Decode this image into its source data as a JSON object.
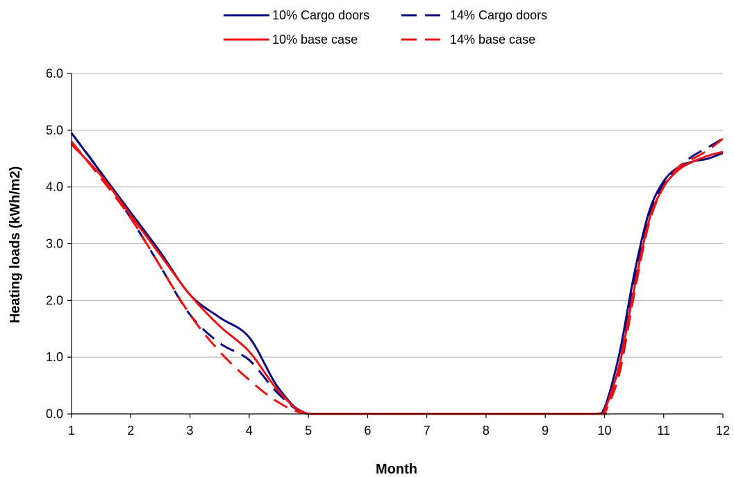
{
  "chart_data": {
    "type": "line",
    "title": "",
    "xlabel": "Month",
    "ylabel": "Heating loads (kWh/m2)",
    "xlim": [
      1,
      12
    ],
    "ylim": [
      0,
      6
    ],
    "x_ticks": [
      "1",
      "2",
      "3",
      "4",
      "5",
      "6",
      "7",
      "8",
      "9",
      "10",
      "11",
      "12"
    ],
    "y_ticks": [
      "0.0",
      "1.0",
      "2.0",
      "3.0",
      "4.0",
      "5.0",
      "6.0"
    ],
    "grid": "horizontal",
    "legend_position": "top",
    "series": [
      {
        "name": "10% Cargo doors",
        "color": "#0a0a80",
        "dash": "solid",
        "points": [
          [
            1,
            4.95
          ],
          [
            1.5,
            4.25
          ],
          [
            2,
            3.55
          ],
          [
            2.5,
            2.85
          ],
          [
            3,
            2.1
          ],
          [
            3.5,
            1.7
          ],
          [
            4,
            1.35
          ],
          [
            4.5,
            0.45
          ],
          [
            5,
            0.0
          ],
          [
            6,
            0.0
          ],
          [
            7,
            0.0
          ],
          [
            8,
            0.0
          ],
          [
            9,
            0.0
          ],
          [
            9.85,
            0.0
          ],
          [
            10,
            0.1
          ],
          [
            10.25,
            1.05
          ],
          [
            10.5,
            2.45
          ],
          [
            10.75,
            3.55
          ],
          [
            11,
            4.1
          ],
          [
            11.25,
            4.35
          ],
          [
            11.5,
            4.45
          ],
          [
            11.75,
            4.5
          ],
          [
            12,
            4.6
          ]
        ]
      },
      {
        "name": "14% Cargo doors",
        "color": "#0a0a80",
        "dash": "dashed",
        "points": [
          [
            1,
            4.95
          ],
          [
            1.5,
            4.25
          ],
          [
            2,
            3.45
          ],
          [
            2.5,
            2.6
          ],
          [
            3,
            1.75
          ],
          [
            3.5,
            1.25
          ],
          [
            4,
            0.95
          ],
          [
            4.5,
            0.35
          ],
          [
            5,
            0.0
          ],
          [
            6,
            0.0
          ],
          [
            7,
            0.0
          ],
          [
            8,
            0.0
          ],
          [
            9,
            0.0
          ],
          [
            9.9,
            0.0
          ],
          [
            10,
            0.05
          ],
          [
            10.25,
            0.85
          ],
          [
            10.5,
            2.3
          ],
          [
            10.75,
            3.5
          ],
          [
            11,
            4.05
          ],
          [
            11.25,
            4.35
          ],
          [
            11.5,
            4.55
          ],
          [
            11.75,
            4.7
          ],
          [
            12,
            4.85
          ]
        ]
      },
      {
        "name": "10% base case",
        "color": "#ee1111",
        "dash": "solid",
        "points": [
          [
            1,
            4.75
          ],
          [
            1.5,
            4.2
          ],
          [
            2,
            3.5
          ],
          [
            2.5,
            2.8
          ],
          [
            3,
            2.1
          ],
          [
            3.5,
            1.55
          ],
          [
            4,
            1.1
          ],
          [
            4.5,
            0.4
          ],
          [
            5,
            0.0
          ],
          [
            6,
            0.0
          ],
          [
            7,
            0.0
          ],
          [
            8,
            0.0
          ],
          [
            9,
            0.0
          ],
          [
            9.95,
            0.0
          ],
          [
            10,
            0.05
          ],
          [
            10.25,
            0.85
          ],
          [
            10.5,
            2.2
          ],
          [
            10.75,
            3.4
          ],
          [
            11,
            4.0
          ],
          [
            11.25,
            4.3
          ],
          [
            11.5,
            4.45
          ],
          [
            11.75,
            4.55
          ],
          [
            12,
            4.62
          ]
        ]
      },
      {
        "name": "14% base case",
        "color": "#ee1111",
        "dash": "dashed",
        "points": [
          [
            1,
            4.8
          ],
          [
            1.5,
            4.15
          ],
          [
            2,
            3.45
          ],
          [
            2.5,
            2.6
          ],
          [
            3,
            1.75
          ],
          [
            3.5,
            1.1
          ],
          [
            4,
            0.6
          ],
          [
            4.5,
            0.2
          ],
          [
            5,
            0.0
          ],
          [
            6,
            0.0
          ],
          [
            7,
            0.0
          ],
          [
            8,
            0.0
          ],
          [
            9,
            0.0
          ],
          [
            9.95,
            0.0
          ],
          [
            10,
            0.0
          ],
          [
            10.25,
            0.7
          ],
          [
            10.5,
            2.1
          ],
          [
            10.75,
            3.35
          ],
          [
            11,
            4.0
          ],
          [
            11.25,
            4.35
          ],
          [
            11.5,
            4.5
          ],
          [
            11.75,
            4.65
          ],
          [
            12,
            4.85
          ]
        ]
      }
    ]
  }
}
